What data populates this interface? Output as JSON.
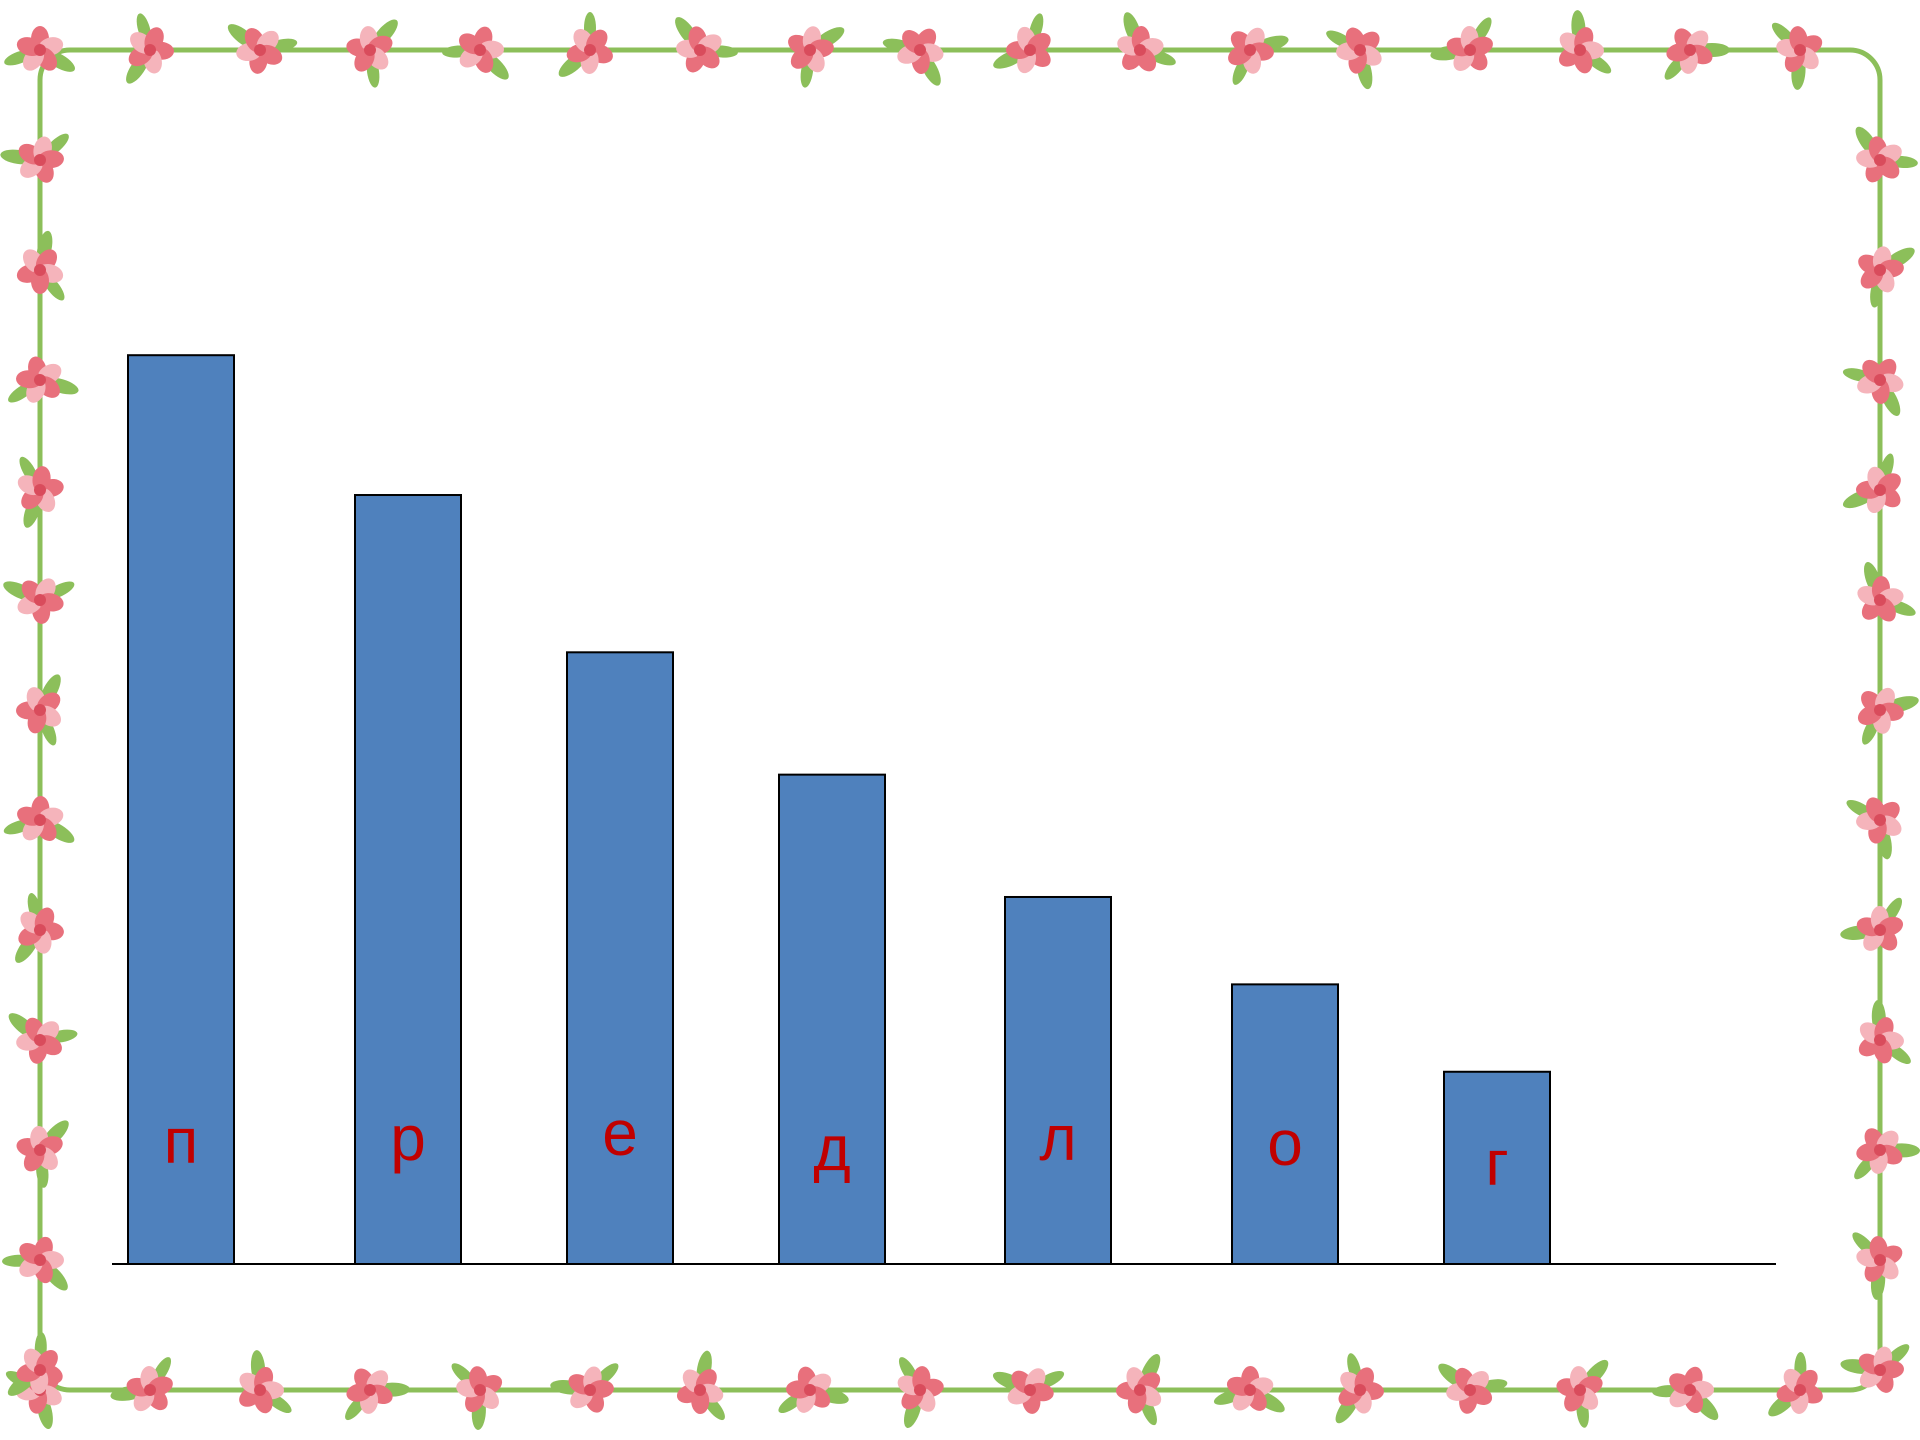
{
  "colors": {
    "bar": "#4f81bd",
    "bar_stroke": "#000000",
    "label": "#c00000",
    "axis": "#000000",
    "frame_flower": "#e8707c",
    "frame_flower_light": "#f5b4bb",
    "frame_leaf": "#8cbf5a"
  },
  "decoration": {
    "frame": "floral-border-icon"
  },
  "chart_data": {
    "type": "bar",
    "categories": [
      "п",
      "р",
      "е",
      "д",
      "л",
      "о",
      "г"
    ],
    "values": [
      10.4,
      8.8,
      7.0,
      5.6,
      4.2,
      3.2,
      2.2
    ],
    "ylim": [
      0,
      13
    ],
    "grid": false,
    "legend": "none",
    "title": "",
    "xlabel": "",
    "ylabel": ""
  }
}
